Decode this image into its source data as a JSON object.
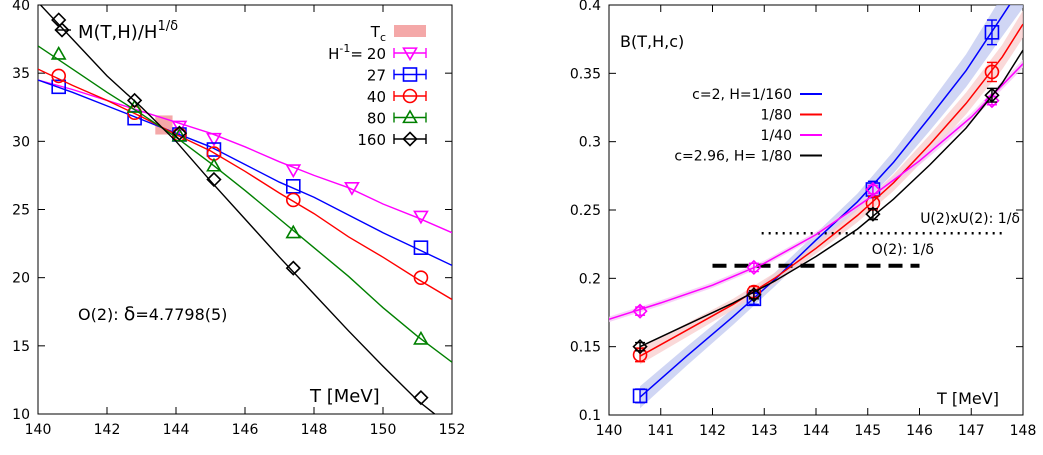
{
  "chart_data": [
    {
      "type": "line",
      "title": "M(T,H)/H^{1/δ}",
      "title_parts": {
        "main": "M(T,H)/H",
        "sup": "1/δ"
      },
      "xlabel": "T [MeV]",
      "ylabel": "",
      "xlim": [
        140,
        152
      ],
      "ylim": [
        10,
        40
      ],
      "x_ticks": [
        140,
        142,
        144,
        146,
        148,
        150,
        152
      ],
      "y_ticks": [
        10,
        15,
        20,
        25,
        30,
        35,
        40
      ],
      "grid": false,
      "legend_position": "top-right",
      "legend_prefix": {
        "main": "H",
        "sup": "-1",
        "tail": "="
      },
      "annotation": {
        "prefix": "O(2): ",
        "symbol": "δ",
        "value": "=4.7798(5)"
      },
      "tc_band": {
        "label_main": "T",
        "label_sub": "c",
        "x": [
          143.4,
          143.9
        ],
        "y": [
          30.5,
          31.9
        ],
        "color": "#f4a8a8"
      },
      "series": [
        {
          "name": "20",
          "color": "#ff00ff",
          "marker": "triangle-down",
          "line_x": [
            140,
            141,
            142,
            143,
            144,
            145,
            146,
            147,
            148,
            149,
            150,
            151,
            152
          ],
          "line_y": [
            34.5,
            33.8,
            33.0,
            32.2,
            31.4,
            30.6,
            29.6,
            28.5,
            27.5,
            26.6,
            25.4,
            24.4,
            23.3
          ],
          "points_x": [
            144.1,
            145.1,
            147.4,
            149.1,
            151.1
          ],
          "points_y": [
            31.1,
            30.2,
            27.9,
            26.6,
            24.5
          ]
        },
        {
          "name": "27",
          "color": "#0000ff",
          "marker": "square",
          "line_x": [
            140,
            141,
            142,
            143,
            144,
            145,
            146,
            147,
            148,
            149,
            150,
            151,
            152
          ],
          "line_y": [
            34.5,
            33.6,
            32.6,
            31.6,
            30.6,
            29.6,
            28.3,
            27.0,
            25.9,
            24.6,
            23.3,
            22.1,
            20.9
          ],
          "points_x": [
            140.6,
            142.8,
            144.1,
            145.1,
            147.4,
            151.1
          ],
          "points_y": [
            34.0,
            31.7,
            30.5,
            29.4,
            26.7,
            22.2
          ]
        },
        {
          "name": "40",
          "color": "#ff0000",
          "marker": "circle",
          "line_x": [
            140,
            141,
            142,
            143,
            144,
            145,
            146,
            147,
            148,
            149,
            150,
            151,
            152
          ],
          "line_y": [
            35.3,
            34.1,
            33.0,
            31.8,
            30.5,
            29.3,
            27.8,
            26.2,
            24.7,
            23.0,
            21.5,
            19.9,
            18.4
          ],
          "points_x": [
            140.6,
            142.8,
            144.1,
            145.1,
            147.4,
            151.1
          ],
          "points_y": [
            34.8,
            32.1,
            30.5,
            29.1,
            25.7,
            20.0
          ]
        },
        {
          "name": "80",
          "color": "#008000",
          "marker": "triangle-up",
          "line_x": [
            140,
            141,
            142,
            143,
            144,
            145,
            146,
            147,
            148,
            149,
            150,
            151,
            152
          ],
          "line_y": [
            37.0,
            35.3,
            33.6,
            32.0,
            30.3,
            28.4,
            26.4,
            24.3,
            22.2,
            20.1,
            17.8,
            15.7,
            13.8
          ],
          "points_x": [
            140.6,
            142.8,
            144.1,
            145.1,
            147.4,
            151.1
          ],
          "points_y": [
            36.4,
            32.5,
            30.4,
            28.2,
            23.3,
            15.5
          ]
        },
        {
          "name": "160",
          "color": "#000000",
          "marker": "diamond",
          "line_x": [
            140,
            141,
            142,
            143,
            144,
            145,
            146,
            147,
            148,
            149,
            150,
            151,
            151.8
          ],
          "line_y": [
            40.2,
            37.5,
            34.8,
            32.5,
            30.0,
            27.1,
            24.3,
            21.5,
            18.8,
            16.1,
            13.5,
            11.0,
            9.4
          ],
          "points_x": [
            140.6,
            142.8,
            144.1,
            145.1,
            147.4,
            151.1
          ],
          "points_y": [
            38.9,
            33.0,
            30.6,
            27.2,
            20.7,
            11.2
          ]
        }
      ]
    },
    {
      "type": "line",
      "title": "B(T,H,c)",
      "xlabel": "T [MeV]",
      "ylabel": "",
      "xlim": [
        140,
        148
      ],
      "ylim": [
        0.1,
        0.4
      ],
      "x_ticks": [
        140,
        141,
        142,
        143,
        144,
        145,
        146,
        147,
        148
      ],
      "y_ticks": [
        0.1,
        0.15,
        0.2,
        0.25,
        0.3,
        0.35,
        0.4
      ],
      "y_tick_labels": [
        "0.1",
        "0.15",
        "0.2",
        "0.25",
        "0.3",
        "0.35",
        "0.4"
      ],
      "grid": false,
      "legend_position": "top-left",
      "legend_labels": [
        "c=2, H=1/160",
        "1/80",
        "1/40",
        "c=2.96, H= 1/80"
      ],
      "reference_lines": [
        {
          "label_prefix": "U(2)xU(2): 1/",
          "label_symbol": "δ",
          "y": 0.233,
          "x_range": [
            142.95,
            147.65
          ],
          "style": "dotted"
        },
        {
          "label_prefix": "O(2): 1/",
          "label_symbol": "δ",
          "y": 0.2092,
          "x_range": [
            142.0,
            146.0
          ],
          "style": "dashed"
        }
      ],
      "series": [
        {
          "name": "c=2, H=1/160",
          "color": "#0000ff",
          "band_color": "#c0c8f0",
          "marker": "square",
          "line_x": [
            140.6,
            141.5,
            142.4,
            143.2,
            144.0,
            144.8,
            145.5,
            146.2,
            146.9,
            147.6,
            148.0
          ],
          "line_y": [
            0.113,
            0.143,
            0.172,
            0.199,
            0.228,
            0.256,
            0.285,
            0.318,
            0.352,
            0.392,
            0.415
          ],
          "band_halfwidth": [
            0.008,
            0.007,
            0.006,
            0.005,
            0.005,
            0.006,
            0.008,
            0.01,
            0.012,
            0.015,
            0.017
          ],
          "points_x": [
            140.6,
            142.8,
            145.1,
            147.4
          ],
          "points_y": [
            0.114,
            0.185,
            0.265,
            0.38
          ],
          "errors": [
            0.005,
            0.004,
            0.006,
            0.009
          ]
        },
        {
          "name": "1/80",
          "color": "#ff0000",
          "band_color": "#f8cccc",
          "marker": "circle",
          "line_x": [
            140.6,
            141.5,
            142.4,
            143.2,
            144.0,
            144.8,
            145.5,
            146.2,
            146.9,
            147.6,
            148.0
          ],
          "line_y": [
            0.143,
            0.162,
            0.181,
            0.2,
            0.222,
            0.246,
            0.27,
            0.298,
            0.328,
            0.362,
            0.386
          ],
          "band_halfwidth": [
            0.006,
            0.005,
            0.004,
            0.004,
            0.004,
            0.005,
            0.006,
            0.007,
            0.008,
            0.009,
            0.01
          ],
          "points_x": [
            140.6,
            142.8,
            145.1,
            147.4
          ],
          "points_y": [
            0.144,
            0.19,
            0.255,
            0.351
          ],
          "errors": [
            0.005,
            0.004,
            0.005,
            0.007
          ]
        },
        {
          "name": "1/40",
          "color": "#ff00ff",
          "band_color": "#f4c4f4",
          "marker": "diamond",
          "line_x": [
            140.0,
            141.0,
            142.0,
            143.0,
            144.0,
            145.0,
            146.0,
            147.0,
            148.0
          ],
          "line_y": [
            0.17,
            0.182,
            0.195,
            0.211,
            0.232,
            0.258,
            0.286,
            0.318,
            0.357
          ],
          "band_halfwidth": [
            0.002,
            0.002,
            0.002,
            0.002,
            0.002,
            0.002,
            0.003,
            0.003,
            0.003
          ],
          "points_x": [
            140.6,
            142.8,
            145.1,
            147.4
          ],
          "points_y": [
            0.176,
            0.208,
            0.265,
            0.33
          ],
          "errors": [
            0.003,
            0.003,
            0.003,
            0.003
          ]
        },
        {
          "name": "c=2.96, H= 1/80",
          "color": "#000000",
          "band_color": "",
          "marker": "diamond",
          "line_x": [
            140.6,
            141.5,
            142.4,
            143.2,
            144.0,
            144.8,
            145.5,
            146.2,
            146.9,
            147.6,
            148.0
          ],
          "line_y": [
            0.15,
            0.166,
            0.182,
            0.198,
            0.216,
            0.236,
            0.258,
            0.283,
            0.31,
            0.343,
            0.367
          ],
          "band_halfwidth": [],
          "points_x": [
            140.6,
            142.8,
            145.1,
            147.4
          ],
          "points_y": [
            0.15,
            0.188,
            0.247,
            0.334
          ],
          "errors": [
            0.003,
            0.003,
            0.004,
            0.005
          ]
        }
      ]
    }
  ]
}
